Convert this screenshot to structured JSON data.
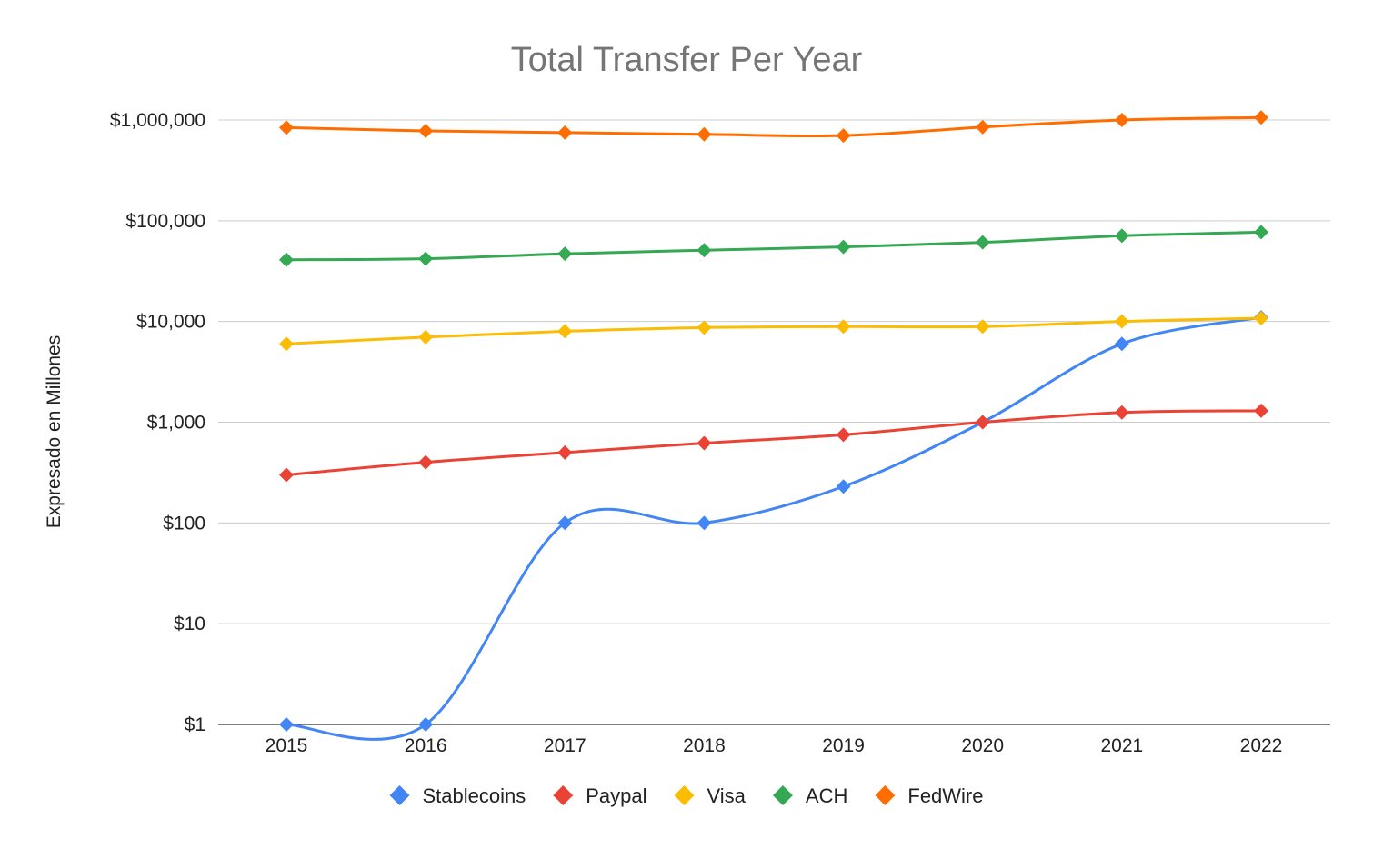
{
  "chart_data": {
    "type": "line",
    "title": "Total Transfer Per Year",
    "xlabel": "",
    "ylabel": "Expresado en Millones",
    "y_scale": "log",
    "ylim": [
      1,
      1000000
    ],
    "y_ticks": [
      1,
      10,
      100,
      1000,
      10000,
      100000,
      1000000
    ],
    "y_tick_labels": [
      "$1",
      "$10",
      "$100",
      "$1,000",
      "$10,000",
      "$100,000",
      "$1,000,000"
    ],
    "categories": [
      "2015",
      "2016",
      "2017",
      "2018",
      "2019",
      "2020",
      "2021",
      "2022"
    ],
    "grid": true,
    "legend_position": "bottom",
    "series": [
      {
        "name": "Stablecoins",
        "color": "#4285F4",
        "values": [
          1,
          1,
          100,
          100,
          230,
          1000,
          6000,
          11000
        ]
      },
      {
        "name": "Paypal",
        "color": "#EA4335",
        "values": [
          300,
          400,
          500,
          620,
          750,
          1000,
          1250,
          1300
        ]
      },
      {
        "name": "Visa",
        "color": "#FBBC04",
        "values": [
          6000,
          7000,
          8000,
          8700,
          8900,
          8900,
          10000,
          10800
        ]
      },
      {
        "name": "ACH",
        "color": "#34A853",
        "values": [
          41000,
          42000,
          47000,
          51000,
          55000,
          61000,
          71000,
          77000
        ]
      },
      {
        "name": "FedWire",
        "color": "#FF6D01",
        "values": [
          840000,
          780000,
          750000,
          720000,
          700000,
          850000,
          1000000,
          1060000
        ]
      }
    ]
  }
}
